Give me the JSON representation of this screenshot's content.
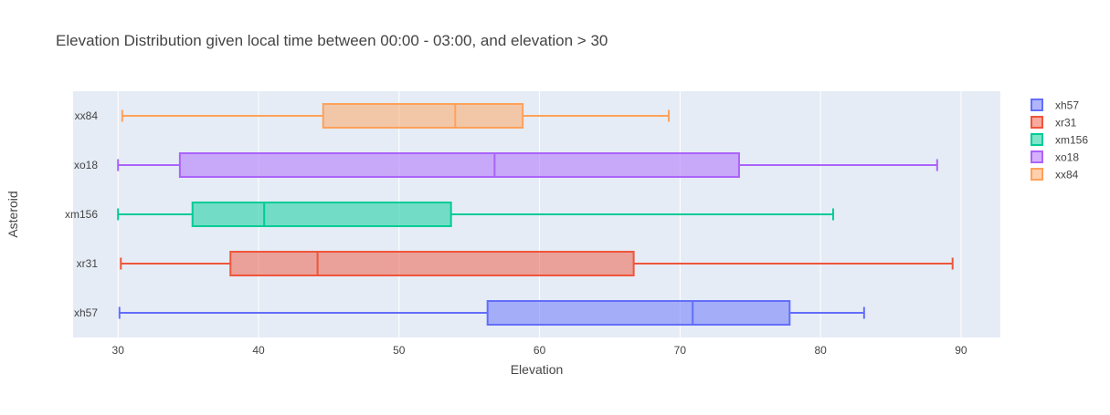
{
  "chart_data": {
    "type": "box",
    "orientation": "horizontal",
    "title": "Elevation Distribution given local time between 00:00 - 03:00, and elevation > 30",
    "xlabel": "Elevation",
    "ylabel": "Asteroid",
    "xlim": [
      26.8,
      92.8
    ],
    "xticks": [
      30,
      40,
      50,
      60,
      70,
      80,
      90
    ],
    "grid": true,
    "legend_position": "right",
    "categories": [
      "xh57",
      "xr31",
      "xm156",
      "xo18",
      "xx84"
    ],
    "series": [
      {
        "name": "xh57",
        "color": "#636efa",
        "min": 30.1,
        "q1": 56.3,
        "median": 70.9,
        "q3": 77.8,
        "max": 83.1
      },
      {
        "name": "xr31",
        "color": "#ef553b",
        "min": 30.2,
        "q1": 38.0,
        "median": 44.2,
        "q3": 66.7,
        "max": 89.4
      },
      {
        "name": "xm156",
        "color": "#00cc96",
        "min": 30.0,
        "q1": 35.3,
        "median": 40.4,
        "q3": 53.7,
        "max": 80.9
      },
      {
        "name": "xo18",
        "color": "#ab63fa",
        "min": 30.0,
        "q1": 34.4,
        "median": 56.8,
        "q3": 74.2,
        "max": 88.3
      },
      {
        "name": "xx84",
        "color": "#ffa15a",
        "min": 30.3,
        "q1": 44.6,
        "median": 54.0,
        "q3": 58.8,
        "max": 69.2
      }
    ]
  }
}
